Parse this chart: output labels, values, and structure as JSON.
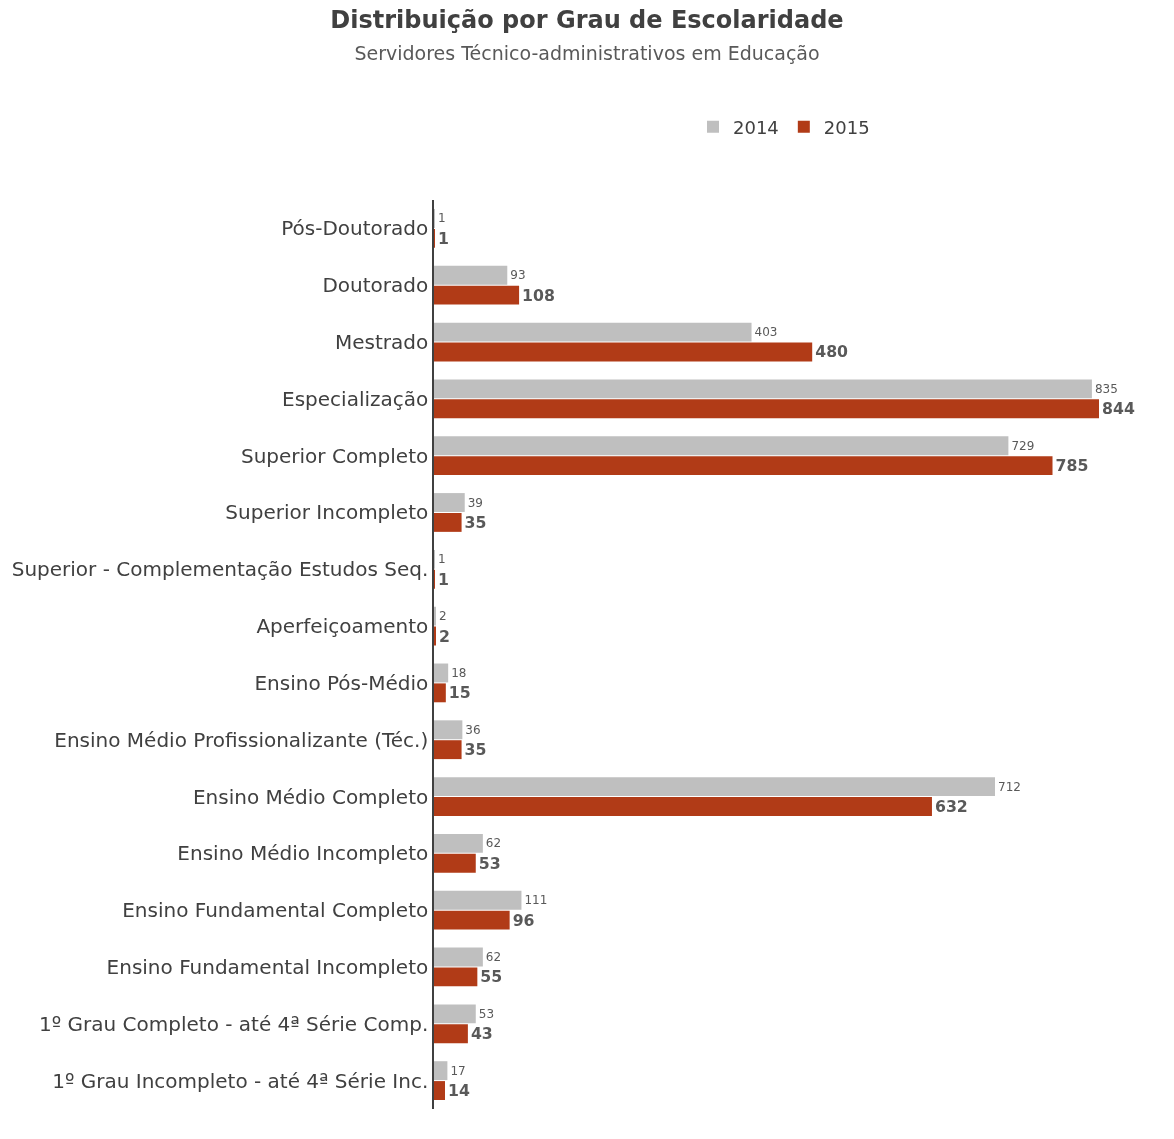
{
  "chart_data": {
    "type": "bar",
    "orientation": "horizontal",
    "title": "Distribuição por Grau de Escolaridade",
    "subtitle": "Servidores Técnico-administrativos em Educação",
    "categories": [
      "Pós-Doutorado",
      "Doutorado",
      "Mestrado",
      "Especialização",
      "Superior Completo",
      "Superior Incompleto",
      "Superior - Complementação Estudos Seq.",
      "Aperfeiçoamento",
      "Ensino Pós-Médio",
      "Ensino Médio Profissionalizante (Téc.)",
      "Ensino Médio Completo",
      "Ensino Médio Incompleto",
      "Ensino Fundamental Completo",
      "Ensino Fundamental Incompleto",
      "1º Grau Completo - até 4ª Série Comp.",
      "1º Grau Incompleto - até 4ª Série Inc."
    ],
    "series": [
      {
        "name": "2014",
        "color": "#bfbfbf",
        "values": [
          1,
          93,
          403,
          835,
          729,
          39,
          1,
          2,
          18,
          36,
          712,
          62,
          111,
          62,
          53,
          17
        ]
      },
      {
        "name": "2015",
        "color": "#b13b17",
        "values": [
          1,
          108,
          480,
          844,
          785,
          35,
          1,
          2,
          15,
          35,
          632,
          53,
          96,
          55,
          43,
          14
        ]
      }
    ],
    "data_labels": true,
    "legend": "top"
  }
}
